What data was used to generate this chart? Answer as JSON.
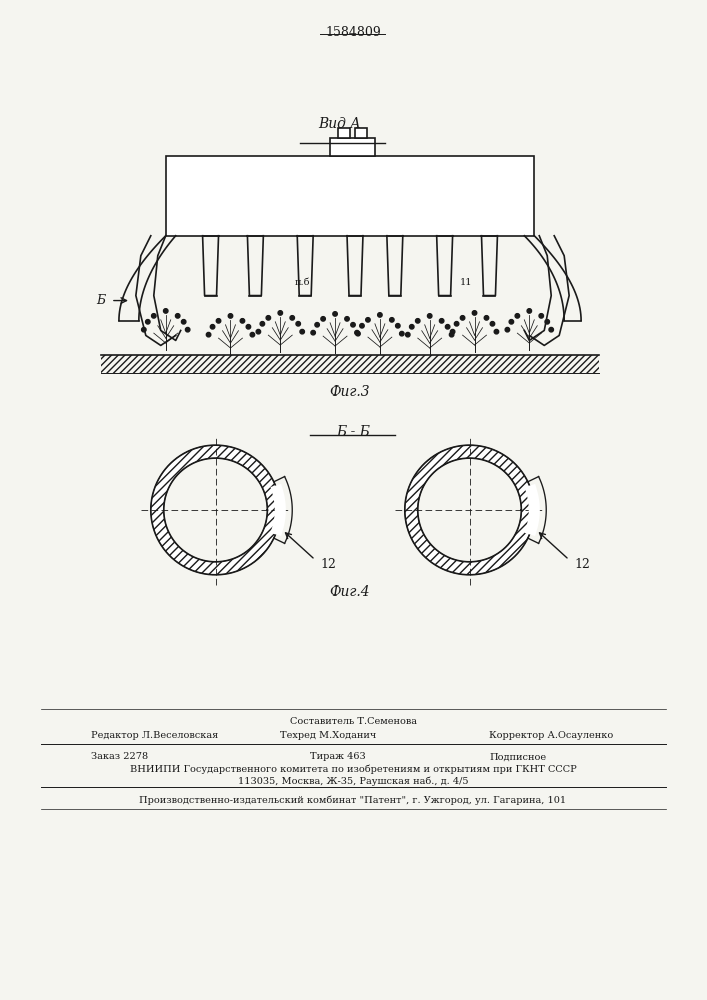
{
  "patent_number": "1584809",
  "fig3_label": "Фиг.3",
  "fig4_label": "Фиг.4",
  "view_a_label": "Вид А",
  "section_bb_label": "Б - Б",
  "label_b": "Б",
  "label_10b": "п.б",
  "label_11": "11",
  "label_12": "12",
  "footer_line1_center": "Составитель Т.Семенова",
  "footer_line2_left": "Редактор Л.Веселовская",
  "footer_line2_center": "Техред М.Ходанич",
  "footer_line2_right": "Корректор А.Осауленко",
  "footer_line3_left": "Заказ 2278",
  "footer_line3_center": "Тираж 463",
  "footer_line3_right": "Подписное",
  "footer_line4": "ВНИИПИ Государственного комитета по изобретениям и открытиям при ГКНТ СССР",
  "footer_line5": "113035, Москва, Ж-35, Раушская наб., д. 4/5",
  "footer_line6": "Производственно-издательский комбинат \"Патент\", г. Ужгород, ул. Гагарина, 101",
  "bg_color": "#f5f5f0",
  "line_color": "#1a1a1a",
  "hatch_color": "#555555"
}
